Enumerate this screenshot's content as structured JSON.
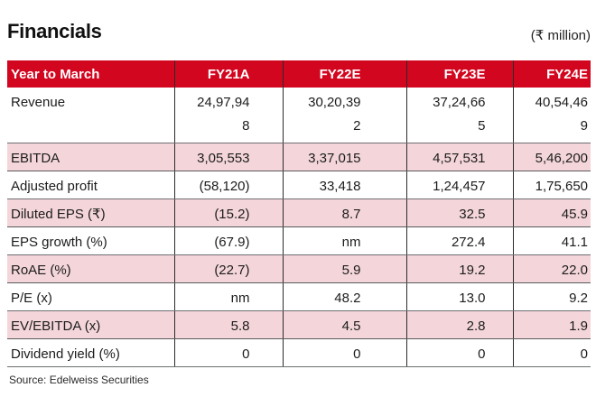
{
  "page": {
    "title": "Financials",
    "unit_label": "(₹ million)",
    "source": "Source: Edelweiss Securities"
  },
  "colors": {
    "header_bg": "#d2061f",
    "shaded_row_bg": "#f4d6da",
    "vertical_border": "#2b2b2b",
    "horizontal_border": "#6d6e71"
  },
  "table": {
    "header": {
      "year_col": "Year to March",
      "columns": [
        "FY21A",
        "FY22E",
        "FY23E",
        "FY24E"
      ]
    },
    "rows": [
      {
        "label": "Revenue",
        "values": [
          "24,97,94\n8",
          "30,20,39\n2",
          "37,24,66\n5",
          "40,54,46\n9"
        ]
      },
      {
        "label": "EBITDA",
        "values": [
          "3,05,553",
          "3,37,015",
          "4,57,531",
          "5,46,200"
        ]
      },
      {
        "label": "Adjusted profit",
        "values": [
          "(58,120)",
          "33,418",
          "1,24,457",
          "1,75,650"
        ]
      },
      {
        "label": "Diluted EPS (₹)",
        "values": [
          "(15.2)",
          "8.7",
          "32.5",
          "45.9"
        ]
      },
      {
        "label": "EPS growth (%)",
        "values": [
          "(67.9)",
          "nm",
          "272.4",
          "41.1"
        ]
      },
      {
        "label": "RoAE (%)",
        "values": [
          "(22.7)",
          "5.9",
          "19.2",
          "22.0"
        ]
      },
      {
        "label": "P/E (x)",
        "values": [
          "nm",
          "48.2",
          "13.0",
          "9.2"
        ]
      },
      {
        "label": "EV/EBITDA (x)",
        "values": [
          "5.8",
          "4.5",
          "2.8",
          "1.9"
        ]
      },
      {
        "label": "Dividend yield (%)",
        "values": [
          "0",
          "0",
          "0",
          "0"
        ]
      }
    ]
  },
  "chart_data": {
    "type": "table",
    "title": "Financials",
    "unit": "₹ million",
    "columns": [
      "Year to March",
      "FY21A",
      "FY22E",
      "FY23E",
      "FY24E"
    ],
    "rows": [
      [
        "Revenue",
        "24,97,948",
        "30,20,392",
        "37,24,665",
        "40,54,469"
      ],
      [
        "EBITDA",
        "3,05,553",
        "3,37,015",
        "4,57,531",
        "5,46,200"
      ],
      [
        "Adjusted profit",
        "(58,120)",
        "33,418",
        "1,24,457",
        "1,75,650"
      ],
      [
        "Diluted EPS (₹)",
        "(15.2)",
        "8.7",
        "32.5",
        "45.9"
      ],
      [
        "EPS growth (%)",
        "(67.9)",
        "nm",
        "272.4",
        "41.1"
      ],
      [
        "RoAE (%)",
        "(22.7)",
        "5.9",
        "19.2",
        "22.0"
      ],
      [
        "P/E (x)",
        "nm",
        "48.2",
        "13.0",
        "9.2"
      ],
      [
        "EV/EBITDA (x)",
        "5.8",
        "4.5",
        "2.8",
        "1.9"
      ],
      [
        "Dividend yield (%)",
        "0",
        "0",
        "0",
        "0"
      ]
    ],
    "shaded_rows": [
      "EBITDA",
      "Diluted EPS (₹)",
      "RoAE (%)",
      "EV/EBITDA (x)"
    ],
    "source": "Edelweiss Securities"
  }
}
